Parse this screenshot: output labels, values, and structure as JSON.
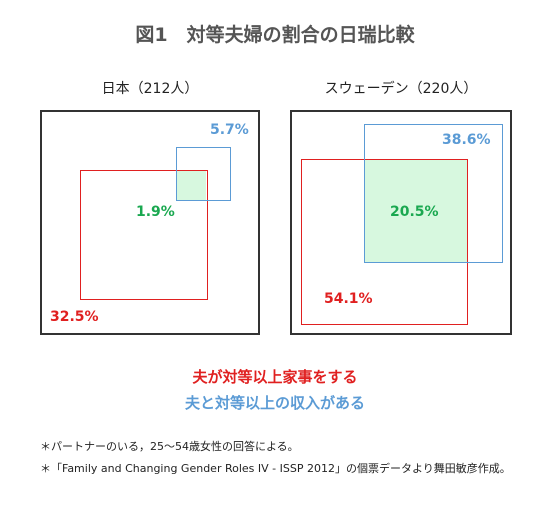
{
  "title": "図1　対等夫婦の割合の日瑞比較",
  "panels": [
    {
      "caption": "日本（212人）",
      "red_value": "32.5%",
      "blue_value": "5.7%",
      "overlap_value": "1.9%"
    },
    {
      "caption": "スウェーデン（220人）",
      "red_value": "54.1%",
      "blue_value": "38.6%",
      "overlap_value": "20.5%"
    }
  ],
  "legend": {
    "red": "夫が対等以上家事をする",
    "blue": "夫と対等以上の収入がある"
  },
  "notes": [
    "＊パートナーのいる，25～54歳女性の回答による。",
    "＊「Family and Changing Gender Roles IV - ISSP 2012」の個票データより舞田敏彦作成。"
  ],
  "colors": {
    "red": "#e02020",
    "blue": "#5b9bd5",
    "green": "#1aa850",
    "overlap_fill": "#d7f8df"
  }
}
